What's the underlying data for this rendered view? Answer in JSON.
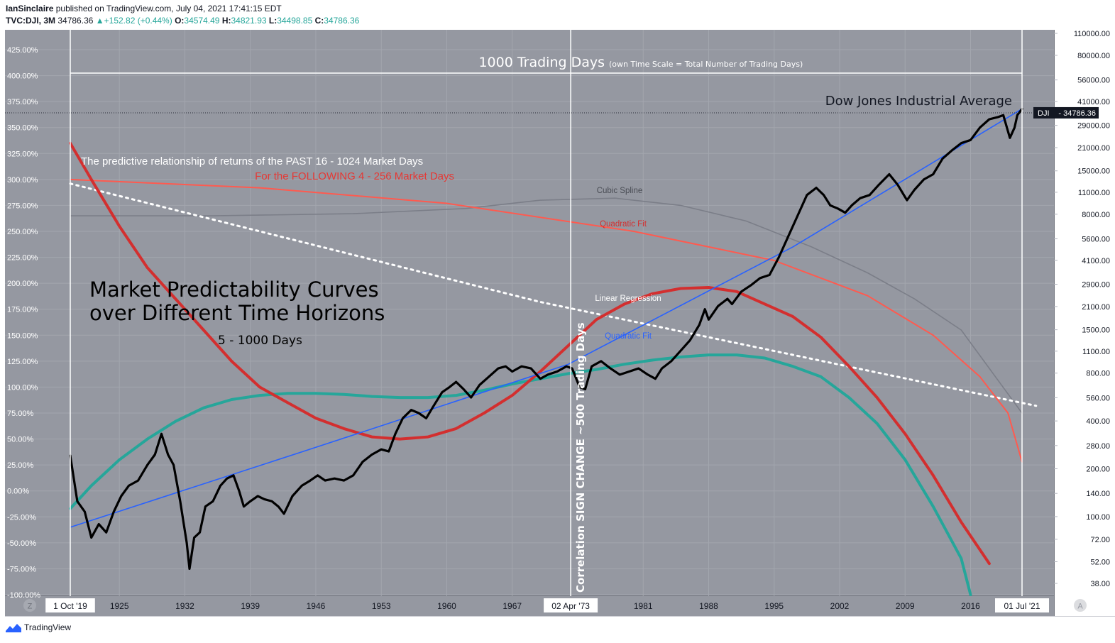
{
  "header": {
    "author": "IanSinclaire",
    "published_text": "published on TradingView.com, July 04, 2021 17:41:15 EDT",
    "symbol": "TVC:DJI, 3M",
    "last": "34786.36",
    "change": "+152.82 (+0.44%)",
    "ohlc": [
      {
        "k": "O:",
        "v": "34574.49"
      },
      {
        "k": "H:",
        "v": "34821.93"
      },
      {
        "k": "L:",
        "v": "34498.85"
      },
      {
        "k": "C:",
        "v": "34786.36"
      }
    ]
  },
  "footer": {
    "brand": "TradingView"
  },
  "colors": {
    "plot_bg": "#9598a1",
    "price": "#000000",
    "red_curve": "#d32f2f",
    "teal_curve": "#26a69a",
    "blue_fit": "#2962ff",
    "cubic": "#7b7e88",
    "white": "#ffffff"
  },
  "chart_data": {
    "type": "line",
    "y_axis_left": {
      "min": -100,
      "max": 425,
      "unit": "%",
      "ticks": [
        "425.00%",
        "400.00%",
        "375.00%",
        "350.00%",
        "325.00%",
        "300.00%",
        "275.00%",
        "250.00%",
        "225.00%",
        "200.00%",
        "175.00%",
        "150.00%",
        "125.00%",
        "100.00%",
        "75.00%",
        "50.00%",
        "25.00%",
        "0.00%",
        "-25.00%",
        "-50.00%",
        "-75.00%",
        "-100.00%"
      ]
    },
    "y_axis_right": {
      "scale": "log",
      "ticks": [
        {
          "value": 110000,
          "label": "110000.00"
        },
        {
          "value": 80000,
          "label": "80000.00"
        },
        {
          "value": 56000,
          "label": "56000.00"
        },
        {
          "value": 41000,
          "label": "41000.00"
        },
        {
          "value": 29000,
          "label": "29000.00"
        },
        {
          "value": 21000,
          "label": "21000.00"
        },
        {
          "value": 15000,
          "label": "15000.00"
        },
        {
          "value": 11000,
          "label": "11000.00"
        },
        {
          "value": 8000,
          "label": "8000.00"
        },
        {
          "value": 5600,
          "label": "5600.00"
        },
        {
          "value": 4100,
          "label": "4100.00"
        },
        {
          "value": 2900,
          "label": "2900.00"
        },
        {
          "value": 2100,
          "label": "2100.00"
        },
        {
          "value": 1500,
          "label": "1500.00"
        },
        {
          "value": 1100,
          "label": "1100.00"
        },
        {
          "value": 800,
          "label": "800.00"
        },
        {
          "value": 560,
          "label": "560.00"
        },
        {
          "value": 400,
          "label": "400.00"
        },
        {
          "value": 280,
          "label": "280.00"
        },
        {
          "value": 200,
          "label": "200.00"
        },
        {
          "value": 140,
          "label": "140.00"
        },
        {
          "value": 100,
          "label": "100.00"
        },
        {
          "value": 72,
          "label": "72.00"
        },
        {
          "value": 52,
          "label": "52.00"
        },
        {
          "value": 38,
          "label": "38.00"
        }
      ]
    },
    "x_axis": {
      "min": 1919.75,
      "max": 2021.5,
      "ticks": [
        {
          "value": 1925,
          "label": "1925"
        },
        {
          "value": 1932,
          "label": "1932"
        },
        {
          "value": 1939,
          "label": "1939"
        },
        {
          "value": 1946,
          "label": "1946"
        },
        {
          "value": 1953,
          "label": "1953"
        },
        {
          "value": 1960,
          "label": "1960"
        },
        {
          "value": 1967,
          "label": "1967"
        },
        {
          "value": 1981,
          "label": "1981"
        },
        {
          "value": 1988,
          "label": "1988"
        },
        {
          "value": 1995,
          "label": "1995"
        },
        {
          "value": 2002,
          "label": "2002"
        },
        {
          "value": 2009,
          "label": "2009"
        },
        {
          "value": 2016,
          "label": "2016"
        }
      ],
      "highlighted": [
        {
          "value": 1919.75,
          "label": "1 Oct '19"
        },
        {
          "value": 1973.25,
          "label": "02 Apr '73"
        },
        {
          "value": 2021.5,
          "label": "01 Jul '21"
        }
      ]
    },
    "price_badge": {
      "symbol": "DJI",
      "value": "34786.36"
    },
    "annotations": {
      "title_line1": "Market Predictability Curves",
      "title_line2": "over Different Time Horizons",
      "subtitle": "5 - 1000 Days",
      "days_label": "1000 Trading  Days",
      "days_note": "(own Time Scale = Total Number of Trading Days)",
      "dji_label": "Dow Jones Industrial Average",
      "pred1": "The predictive relationship of returns of the PAST 16 - 1024   Market Days",
      "pred2": "For the FOLLOWING    4 - 256   Market Days",
      "vertical_note": "Correlation SIGN CHANGE ~500 Trading Days",
      "cubic_spline": "Cubic Spline",
      "quadratic_red": "Quadratic Fit",
      "linear_regression": "Linear Regression",
      "quadratic_blue": "Quadratic Fit"
    },
    "series": [
      {
        "key": "price",
        "values": [
          [
            1919.75,
            34
          ],
          [
            1920.5,
            -10
          ],
          [
            1921.3,
            -20
          ],
          [
            1922.0,
            -45
          ],
          [
            1922.8,
            -32
          ],
          [
            1923.6,
            -40
          ],
          [
            1924.4,
            -20
          ],
          [
            1925.2,
            -5
          ],
          [
            1926.0,
            5
          ],
          [
            1927.0,
            10
          ],
          [
            1928.0,
            25
          ],
          [
            1928.8,
            35
          ],
          [
            1929.5,
            55
          ],
          [
            1930.2,
            35
          ],
          [
            1930.8,
            25
          ],
          [
            1931.5,
            -10
          ],
          [
            1932.2,
            -50
          ],
          [
            1932.5,
            -75
          ],
          [
            1933.0,
            -45
          ],
          [
            1933.6,
            -40
          ],
          [
            1934.2,
            -15
          ],
          [
            1935.0,
            -10
          ],
          [
            1935.8,
            5
          ],
          [
            1936.5,
            12
          ],
          [
            1937.2,
            15
          ],
          [
            1937.8,
            0
          ],
          [
            1938.3,
            -15
          ],
          [
            1939.0,
            -10
          ],
          [
            1939.8,
            -5
          ],
          [
            1940.5,
            -8
          ],
          [
            1941.3,
            -10
          ],
          [
            1942.0,
            -15
          ],
          [
            1942.6,
            -22
          ],
          [
            1943.5,
            -5
          ],
          [
            1944.5,
            5
          ],
          [
            1945.4,
            10
          ],
          [
            1946.2,
            15
          ],
          [
            1947.0,
            10
          ],
          [
            1948.0,
            12
          ],
          [
            1949.0,
            10
          ],
          [
            1950.0,
            15
          ],
          [
            1951.0,
            28
          ],
          [
            1952.0,
            35
          ],
          [
            1953.0,
            40
          ],
          [
            1953.8,
            38
          ],
          [
            1954.5,
            55
          ],
          [
            1955.3,
            70
          ],
          [
            1956.2,
            78
          ],
          [
            1957.0,
            75
          ],
          [
            1957.8,
            70
          ],
          [
            1958.6,
            82
          ],
          [
            1959.5,
            95
          ],
          [
            1960.3,
            100
          ],
          [
            1961.0,
            105
          ],
          [
            1961.8,
            98
          ],
          [
            1962.6,
            90
          ],
          [
            1963.5,
            102
          ],
          [
            1964.5,
            110
          ],
          [
            1965.5,
            118
          ],
          [
            1966.3,
            120
          ],
          [
            1967.0,
            115
          ],
          [
            1968.0,
            120
          ],
          [
            1969.0,
            118
          ],
          [
            1970.0,
            108
          ],
          [
            1970.8,
            112
          ],
          [
            1971.8,
            115
          ],
          [
            1972.8,
            120
          ],
          [
            1973.4,
            118
          ],
          [
            1974.2,
            100
          ],
          [
            1974.8,
            98
          ],
          [
            1975.5,
            120
          ],
          [
            1976.5,
            125
          ],
          [
            1977.5,
            118
          ],
          [
            1978.5,
            112
          ],
          [
            1979.5,
            115
          ],
          [
            1980.5,
            118
          ],
          [
            1981.5,
            112
          ],
          [
            1982.3,
            108
          ],
          [
            1983.0,
            118
          ],
          [
            1984.0,
            125
          ],
          [
            1985.0,
            135
          ],
          [
            1986.0,
            145
          ],
          [
            1987.0,
            160
          ],
          [
            1987.6,
            175
          ],
          [
            1988.0,
            165
          ],
          [
            1989.0,
            178
          ],
          [
            1990.0,
            185
          ],
          [
            1990.5,
            180
          ],
          [
            1991.5,
            192
          ],
          [
            1992.5,
            198
          ],
          [
            1993.5,
            205
          ],
          [
            1994.5,
            208
          ],
          [
            1995.5,
            225
          ],
          [
            1996.5,
            245
          ],
          [
            1997.5,
            265
          ],
          [
            1998.5,
            285
          ],
          [
            1999.5,
            292
          ],
          [
            2000.3,
            285
          ],
          [
            2001.0,
            275
          ],
          [
            2001.8,
            272
          ],
          [
            2002.6,
            268
          ],
          [
            2003.3,
            275
          ],
          [
            2004.2,
            282
          ],
          [
            2005.2,
            285
          ],
          [
            2006.2,
            295
          ],
          [
            2007.3,
            305
          ],
          [
            2008.2,
            295
          ],
          [
            2009.2,
            280
          ],
          [
            2010.0,
            290
          ],
          [
            2011.0,
            300
          ],
          [
            2012.0,
            305
          ],
          [
            2013.0,
            320
          ],
          [
            2014.0,
            328
          ],
          [
            2015.0,
            335
          ],
          [
            2016.0,
            338
          ],
          [
            2017.0,
            350
          ],
          [
            2018.0,
            358
          ],
          [
            2018.9,
            360
          ],
          [
            2019.5,
            362
          ],
          [
            2020.2,
            340
          ],
          [
            2020.7,
            350
          ],
          [
            2021.0,
            362
          ],
          [
            2021.5,
            368
          ]
        ]
      },
      {
        "key": "red_curve",
        "values": [
          [
            1919.75,
            335
          ],
          [
            1922,
            300
          ],
          [
            1925,
            255
          ],
          [
            1928,
            215
          ],
          [
            1931,
            185
          ],
          [
            1934,
            155
          ],
          [
            1937,
            125
          ],
          [
            1940,
            100
          ],
          [
            1943,
            85
          ],
          [
            1946,
            70
          ],
          [
            1949,
            60
          ],
          [
            1952,
            52
          ],
          [
            1955,
            50
          ],
          [
            1958,
            52
          ],
          [
            1961,
            60
          ],
          [
            1964,
            75
          ],
          [
            1967,
            92
          ],
          [
            1970,
            115
          ],
          [
            1973,
            140
          ],
          [
            1976,
            165
          ],
          [
            1979,
            180
          ],
          [
            1982,
            190
          ],
          [
            1985,
            195
          ],
          [
            1988,
            196
          ],
          [
            1991,
            192
          ],
          [
            1994,
            180
          ],
          [
            1997,
            168
          ],
          [
            2000,
            148
          ],
          [
            2003,
            120
          ],
          [
            2006,
            90
          ],
          [
            2009,
            55
          ],
          [
            2012,
            15
          ],
          [
            2015,
            -30
          ],
          [
            2018,
            -70
          ]
        ]
      },
      {
        "key": "teal_curve",
        "values": [
          [
            1919.75,
            -17
          ],
          [
            1922,
            5
          ],
          [
            1925,
            30
          ],
          [
            1928,
            50
          ],
          [
            1931,
            67
          ],
          [
            1934,
            80
          ],
          [
            1937,
            88
          ],
          [
            1940,
            92
          ],
          [
            1943,
            94
          ],
          [
            1946,
            94
          ],
          [
            1949,
            93
          ],
          [
            1952,
            91
          ],
          [
            1955,
            90
          ],
          [
            1958,
            90
          ],
          [
            1961,
            92
          ],
          [
            1964,
            97
          ],
          [
            1967,
            103
          ],
          [
            1970,
            108
          ],
          [
            1973,
            113
          ],
          [
            1976,
            117
          ],
          [
            1979,
            122
          ],
          [
            1982,
            126
          ],
          [
            1985,
            129
          ],
          [
            1988,
            131
          ],
          [
            1991,
            131
          ],
          [
            1994,
            128
          ],
          [
            1997,
            120
          ],
          [
            2000,
            110
          ],
          [
            2003,
            90
          ],
          [
            2006,
            65
          ],
          [
            2009,
            30
          ],
          [
            2012,
            -15
          ],
          [
            2015,
            -65
          ],
          [
            2016,
            -100
          ]
        ]
      },
      {
        "key": "blue_fit",
        "values": [
          [
            1919.75,
            -35
          ],
          [
            1946,
            42
          ],
          [
            1973,
            122
          ],
          [
            1997,
            235
          ],
          [
            2021.5,
            368
          ]
        ]
      },
      {
        "key": "white_dotted",
        "values": [
          [
            1919.75,
            296
          ],
          [
            1970,
            182
          ],
          [
            2023,
            82
          ]
        ]
      },
      {
        "key": "cubic_spline",
        "values": [
          [
            1919.75,
            265
          ],
          [
            1935,
            265
          ],
          [
            1950,
            267
          ],
          [
            1962,
            272
          ],
          [
            1970,
            280
          ],
          [
            1978,
            282
          ],
          [
            1985,
            275
          ],
          [
            1992,
            260
          ],
          [
            1999,
            235
          ],
          [
            2005,
            210
          ],
          [
            2010,
            185
          ],
          [
            2015,
            155
          ],
          [
            2021.5,
            75
          ]
        ]
      },
      {
        "key": "red_quadratic",
        "values": [
          [
            1919.75,
            300
          ],
          [
            1940,
            292
          ],
          [
            1960,
            277
          ],
          [
            1980,
            250
          ],
          [
            1995,
            222
          ],
          [
            2005,
            188
          ],
          [
            2012,
            150
          ],
          [
            2017,
            110
          ],
          [
            2020,
            75
          ],
          [
            2021.5,
            28
          ]
        ]
      }
    ]
  }
}
